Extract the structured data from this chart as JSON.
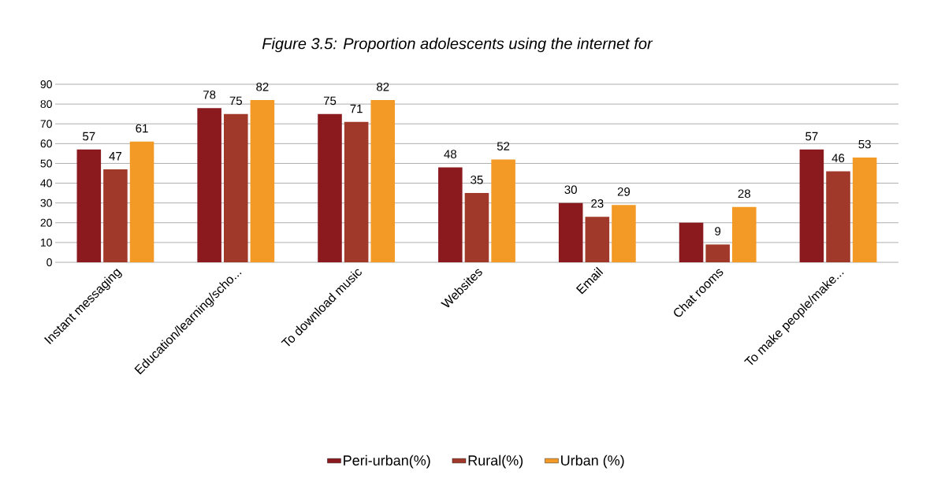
{
  "chart_data": {
    "type": "bar",
    "title": "Figure 3.5: Proportion adolescents using the internet for",
    "categories": [
      "Instant messaging",
      "Education/learning/scho...",
      "To download music",
      "Websites",
      "Email",
      "Chat rooms",
      "To make people/make..."
    ],
    "series": [
      {
        "name": "Peri-urban(%)",
        "color": "#8b1a1f",
        "values": [
          57,
          78,
          75,
          48,
          30,
          20,
          57
        ],
        "value_labels": [
          "57",
          "78",
          "75",
          "48",
          "30",
          null,
          "57"
        ]
      },
      {
        "name": "Rural(%)",
        "color": "#a0392a",
        "values": [
          47,
          75,
          71,
          35,
          23,
          9,
          46
        ],
        "value_labels": [
          "47",
          "75",
          "71",
          "35",
          "23",
          "9",
          "46"
        ]
      },
      {
        "name": "Urban (%)",
        "color": "#f39a26",
        "values": [
          61,
          82,
          82,
          52,
          29,
          28,
          53
        ],
        "value_labels": [
          "61",
          "82",
          "82",
          "52",
          "29",
          "28",
          "53"
        ]
      }
    ],
    "ylim": [
      0,
      90
    ],
    "yticks": [
      0,
      10,
      20,
      30,
      40,
      50,
      60,
      70,
      80,
      90
    ],
    "grid": "y",
    "legend": "bottom"
  }
}
